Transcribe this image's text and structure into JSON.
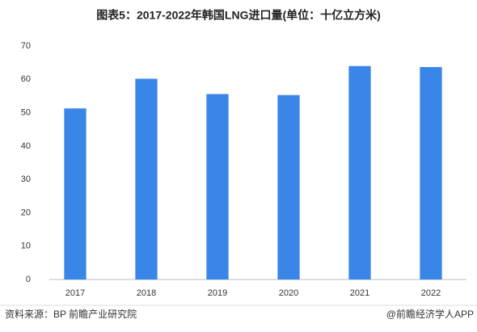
{
  "chart_data": {
    "type": "bar",
    "title": "图表5：2017-2022年韩国LNG进口量(单位：十亿立方米)",
    "categories": [
      "2017",
      "2018",
      "2019",
      "2020",
      "2021",
      "2022"
    ],
    "values": [
      51.3,
      60.2,
      55.6,
      55.3,
      64.0,
      63.7
    ],
    "color": "#3a86e8",
    "ylim": [
      0,
      70
    ],
    "yticks": [
      0,
      10,
      20,
      30,
      40,
      50,
      60,
      70
    ],
    "grid": false,
    "source": "资料来源：BP 前瞻产业研究院",
    "credit": "@前瞻经济学人APP"
  }
}
